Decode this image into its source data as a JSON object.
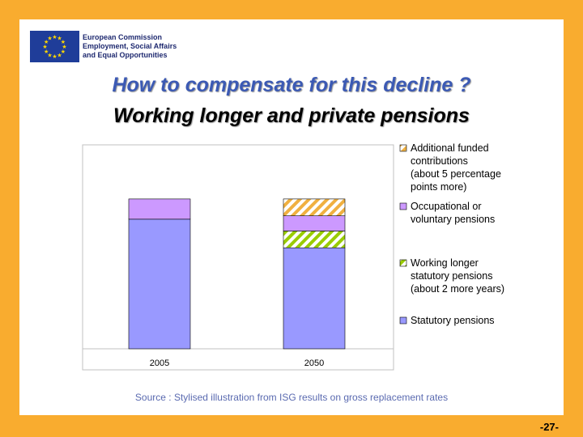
{
  "header": {
    "org_line1": "European Commission",
    "org_line2": "Employment, Social Affairs",
    "org_line3": "and Equal Opportunities"
  },
  "slide": {
    "title_line1": "How to compensate for this decline ?",
    "title_line2": "Working longer and private pensions",
    "source": "Source : Stylised illustration from ISG results on gross replacement rates",
    "page_number": "-27-"
  },
  "colors": {
    "statutory": "#9999ff",
    "working_longer": "#99cc00",
    "occupational": "#cc99ff",
    "additional": "#f0b040",
    "flag": "#1f3d99",
    "star": "#ffd700"
  },
  "chart_data": {
    "type": "bar",
    "stacked": true,
    "categories": [
      "2005",
      "2050"
    ],
    "series": [
      {
        "name": "Statutory pensions",
        "key": "statutory",
        "pattern": "solid",
        "values": [
          77,
          60
        ]
      },
      {
        "name": "Working longer statutory pensions (about 2 more years)",
        "key": "working_longer",
        "pattern": "diag",
        "values": [
          0,
          10
        ]
      },
      {
        "name": "Occupational or voluntary pensions",
        "key": "occupational",
        "pattern": "solid",
        "values": [
          12,
          9
        ]
      },
      {
        "name": "Additional funded contributions (about 5 percentage points more)",
        "key": "additional",
        "pattern": "diag",
        "values": [
          0,
          10
        ]
      }
    ],
    "legend": {
      "placement": "right",
      "entries": [
        {
          "key": "additional",
          "lines": [
            "Additional funded",
            "contributions",
            "(about 5 percentage",
            "points more)"
          ]
        },
        {
          "key": "occupational",
          "lines": [
            "Occupational or",
            "voluntary pensions"
          ]
        },
        {
          "key": "working_longer",
          "lines": [
            "Working longer",
            "statutory pensions",
            "(about 2 more years)"
          ]
        },
        {
          "key": "statutory",
          "lines": [
            "Statutory pensions"
          ]
        }
      ]
    },
    "ylim": [
      0,
      100
    ],
    "grid": false,
    "title": "",
    "xlabel": "",
    "ylabel": ""
  }
}
